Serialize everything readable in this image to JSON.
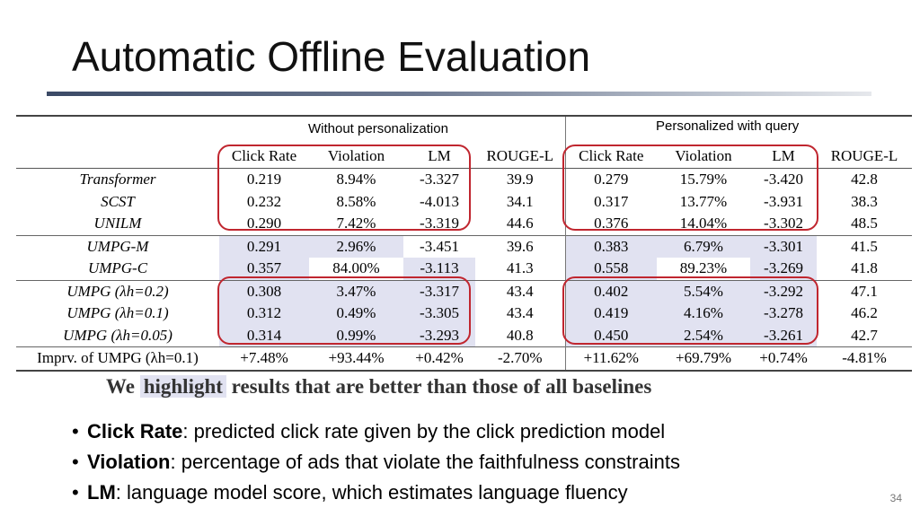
{
  "slide": {
    "title": "Automatic Offline Evaluation",
    "page_number": "34"
  },
  "table": {
    "group_headers": [
      "Without personalization",
      "Personalized with query"
    ],
    "columns": [
      "Click Rate",
      "Violation",
      "LM",
      "ROUGE-L",
      "Click Rate",
      "Violation",
      "LM",
      "ROUGE-L"
    ],
    "rows": [
      {
        "model": "Transformer",
        "values": [
          "0.219",
          "8.94%",
          "-3.327",
          "39.9",
          "0.279",
          "15.79%",
          "-3.420",
          "42.8"
        ]
      },
      {
        "model": "SCST",
        "values": [
          "0.232",
          "8.58%",
          "-4.013",
          "34.1",
          "0.317",
          "13.77%",
          "-3.931",
          "38.3"
        ]
      },
      {
        "model": "UNILM",
        "values": [
          "0.290",
          "7.42%",
          "-3.319",
          "44.6",
          "0.376",
          "14.04%",
          "-3.302",
          "48.5"
        ]
      },
      {
        "model": "UMPG-M",
        "values": [
          "0.291",
          "2.96%",
          "-3.451",
          "39.6",
          "0.383",
          "6.79%",
          "-3.301",
          "41.5"
        ]
      },
      {
        "model": "UMPG-C",
        "values": [
          "0.357",
          "84.00%",
          "-3.113",
          "41.3",
          "0.558",
          "89.23%",
          "-3.269",
          "41.8"
        ]
      },
      {
        "model": "UMPG (λh=0.2)",
        "values": [
          "0.308",
          "3.47%",
          "-3.317",
          "43.4",
          "0.402",
          "5.54%",
          "-3.292",
          "47.1"
        ]
      },
      {
        "model": "UMPG (λh=0.1)",
        "values": [
          "0.312",
          "0.49%",
          "-3.305",
          "43.4",
          "0.419",
          "4.16%",
          "-3.278",
          "46.2"
        ]
      },
      {
        "model": "UMPG (λh=0.05)",
        "values": [
          "0.314",
          "0.99%",
          "-3.293",
          "40.8",
          "0.450",
          "2.54%",
          "-3.261",
          "42.7"
        ]
      },
      {
        "model": "Imprv. of UMPG (λh=0.1)",
        "values": [
          "+7.48%",
          "+93.44%",
          "+0.42%",
          "-2.70%",
          "+11.62%",
          "+69.79%",
          "+0.74%",
          "-4.81%"
        ]
      }
    ],
    "highlight_color": "#e1e2f1",
    "box_color": "#c0262f"
  },
  "caption": {
    "prefix": "We",
    "highlight_word": "highlight",
    "suffix": "results that are better than those of all baselines"
  },
  "bullets": [
    {
      "term": "Click Rate",
      "desc": ": predicted click rate given by the click prediction model"
    },
    {
      "term": "Violation",
      "desc": ": percentage of ads that violate the faithfulness constraints"
    },
    {
      "term": "LM",
      "desc": ": language model score, which estimates language fluency"
    }
  ]
}
